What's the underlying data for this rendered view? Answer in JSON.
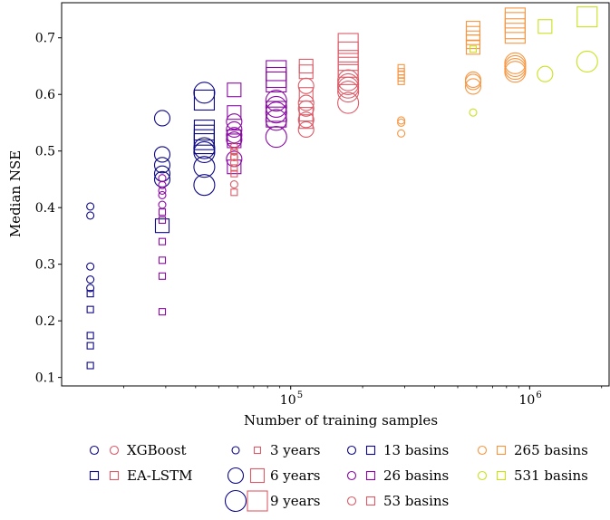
{
  "chart_data": {
    "type": "scatter",
    "x_scale": "log",
    "xlim": [
      11000,
      2150000
    ],
    "ylim": [
      0.085,
      0.762
    ],
    "xlabel": "Number of training samples",
    "ylabel": "Median NSE",
    "y_ticks": [
      {
        "value": 0.1,
        "label": "0.1"
      },
      {
        "value": 0.2,
        "label": "0.2"
      },
      {
        "value": 0.3,
        "label": "0.3"
      },
      {
        "value": 0.4,
        "label": "0.4"
      },
      {
        "value": 0.5,
        "label": "0.5"
      },
      {
        "value": 0.6,
        "label": "0.6"
      },
      {
        "value": 0.7,
        "label": "0.7"
      }
    ],
    "x_ticks": [
      {
        "value": 100000,
        "label": "10",
        "exp": "5"
      },
      {
        "value": 1000000,
        "label": "10",
        "exp": "6"
      }
    ],
    "basin_colors": {
      "13": "#0d0887",
      "26": "#8b0aa5",
      "53": "#db5c68",
      "265": "#f89540",
      "531": "#cbe11e"
    },
    "points": [
      {
        "x": 14500,
        "y": 0.402,
        "model": "XGBoost",
        "years": 3,
        "basins": "13"
      },
      {
        "x": 14500,
        "y": 0.386,
        "model": "XGBoost",
        "years": 3,
        "basins": "13"
      },
      {
        "x": 14500,
        "y": 0.296,
        "model": "XGBoost",
        "years": 3,
        "basins": "13"
      },
      {
        "x": 14500,
        "y": 0.273,
        "model": "XGBoost",
        "years": 3,
        "basins": "13"
      },
      {
        "x": 14500,
        "y": 0.258,
        "model": "XGBoost",
        "years": 3,
        "basins": "13"
      },
      {
        "x": 14500,
        "y": 0.248,
        "model": "EA-LSTM",
        "years": 3,
        "basins": "13"
      },
      {
        "x": 14500,
        "y": 0.22,
        "model": "EA-LSTM",
        "years": 3,
        "basins": "13"
      },
      {
        "x": 14500,
        "y": 0.174,
        "model": "EA-LSTM",
        "years": 3,
        "basins": "13"
      },
      {
        "x": 14500,
        "y": 0.156,
        "model": "EA-LSTM",
        "years": 3,
        "basins": "13"
      },
      {
        "x": 14500,
        "y": 0.121,
        "model": "EA-LSTM",
        "years": 3,
        "basins": "13"
      },
      {
        "x": 29000,
        "y": 0.558,
        "model": "XGBoost",
        "years": 6,
        "basins": "13"
      },
      {
        "x": 29000,
        "y": 0.494,
        "model": "XGBoost",
        "years": 6,
        "basins": "13"
      },
      {
        "x": 29000,
        "y": 0.475,
        "model": "XGBoost",
        "years": 6,
        "basins": "13"
      },
      {
        "x": 29000,
        "y": 0.46,
        "model": "XGBoost",
        "years": 6,
        "basins": "13"
      },
      {
        "x": 29000,
        "y": 0.45,
        "model": "XGBoost",
        "years": 6,
        "basins": "13"
      },
      {
        "x": 29000,
        "y": 0.368,
        "model": "EA-LSTM",
        "years": 6,
        "basins": "13"
      },
      {
        "x": 29000,
        "y": 0.452,
        "model": "XGBoost",
        "years": 3,
        "basins": "26"
      },
      {
        "x": 29000,
        "y": 0.44,
        "model": "XGBoost",
        "years": 3,
        "basins": "26"
      },
      {
        "x": 29000,
        "y": 0.43,
        "model": "XGBoost",
        "years": 3,
        "basins": "26"
      },
      {
        "x": 29000,
        "y": 0.422,
        "model": "XGBoost",
        "years": 3,
        "basins": "26"
      },
      {
        "x": 29000,
        "y": 0.405,
        "model": "XGBoost",
        "years": 3,
        "basins": "26"
      },
      {
        "x": 29000,
        "y": 0.392,
        "model": "EA-LSTM",
        "years": 3,
        "basins": "26"
      },
      {
        "x": 29000,
        "y": 0.378,
        "model": "EA-LSTM",
        "years": 3,
        "basins": "26"
      },
      {
        "x": 29000,
        "y": 0.34,
        "model": "EA-LSTM",
        "years": 3,
        "basins": "26"
      },
      {
        "x": 29000,
        "y": 0.307,
        "model": "EA-LSTM",
        "years": 3,
        "basins": "26"
      },
      {
        "x": 29000,
        "y": 0.279,
        "model": "EA-LSTM",
        "years": 3,
        "basins": "26"
      },
      {
        "x": 29000,
        "y": 0.216,
        "model": "EA-LSTM",
        "years": 3,
        "basins": "26"
      },
      {
        "x": 43500,
        "y": 0.603,
        "model": "XGBoost",
        "years": 9,
        "basins": "13"
      },
      {
        "x": 43500,
        "y": 0.505,
        "model": "XGBoost",
        "years": 9,
        "basins": "13"
      },
      {
        "x": 43500,
        "y": 0.498,
        "model": "XGBoost",
        "years": 9,
        "basins": "13"
      },
      {
        "x": 43500,
        "y": 0.472,
        "model": "XGBoost",
        "years": 9,
        "basins": "13"
      },
      {
        "x": 43500,
        "y": 0.44,
        "model": "XGBoost",
        "years": 9,
        "basins": "13"
      },
      {
        "x": 43500,
        "y": 0.59,
        "model": "EA-LSTM",
        "years": 9,
        "basins": "13"
      },
      {
        "x": 43500,
        "y": 0.537,
        "model": "EA-LSTM",
        "years": 9,
        "basins": "13"
      },
      {
        "x": 43500,
        "y": 0.528,
        "model": "EA-LSTM",
        "years": 9,
        "basins": "13"
      },
      {
        "x": 43500,
        "y": 0.52,
        "model": "EA-LSTM",
        "years": 9,
        "basins": "13"
      },
      {
        "x": 43500,
        "y": 0.513,
        "model": "EA-LSTM",
        "years": 9,
        "basins": "13"
      },
      {
        "x": 58000,
        "y": 0.608,
        "model": "EA-LSTM",
        "years": 6,
        "basins": "26"
      },
      {
        "x": 58000,
        "y": 0.568,
        "model": "EA-LSTM",
        "years": 6,
        "basins": "26"
      },
      {
        "x": 58000,
        "y": 0.525,
        "model": "EA-LSTM",
        "years": 6,
        "basins": "26"
      },
      {
        "x": 58000,
        "y": 0.518,
        "model": "EA-LSTM",
        "years": 6,
        "basins": "26"
      },
      {
        "x": 58000,
        "y": 0.472,
        "model": "EA-LSTM",
        "years": 6,
        "basins": "26"
      },
      {
        "x": 58000,
        "y": 0.552,
        "model": "XGBoost",
        "years": 6,
        "basins": "26"
      },
      {
        "x": 58000,
        "y": 0.538,
        "model": "XGBoost",
        "years": 6,
        "basins": "26"
      },
      {
        "x": 58000,
        "y": 0.528,
        "model": "XGBoost",
        "years": 6,
        "basins": "26"
      },
      {
        "x": 58000,
        "y": 0.52,
        "model": "XGBoost",
        "years": 6,
        "basins": "26"
      },
      {
        "x": 58000,
        "y": 0.486,
        "model": "XGBoost",
        "years": 6,
        "basins": "26"
      },
      {
        "x": 58000,
        "y": 0.508,
        "model": "XGBoost",
        "years": 3,
        "basins": "53"
      },
      {
        "x": 58000,
        "y": 0.499,
        "model": "XGBoost",
        "years": 3,
        "basins": "53"
      },
      {
        "x": 58000,
        "y": 0.489,
        "model": "XGBoost",
        "years": 3,
        "basins": "53"
      },
      {
        "x": 58000,
        "y": 0.479,
        "model": "XGBoost",
        "years": 3,
        "basins": "53"
      },
      {
        "x": 58000,
        "y": 0.441,
        "model": "XGBoost",
        "years": 3,
        "basins": "53"
      },
      {
        "x": 58000,
        "y": 0.5,
        "model": "EA-LSTM",
        "years": 3,
        "basins": "53"
      },
      {
        "x": 58000,
        "y": 0.49,
        "model": "EA-LSTM",
        "years": 3,
        "basins": "53"
      },
      {
        "x": 58000,
        "y": 0.47,
        "model": "EA-LSTM",
        "years": 3,
        "basins": "53"
      },
      {
        "x": 58000,
        "y": 0.46,
        "model": "EA-LSTM",
        "years": 3,
        "basins": "53"
      },
      {
        "x": 58000,
        "y": 0.427,
        "model": "EA-LSTM",
        "years": 3,
        "basins": "53"
      },
      {
        "x": 87000,
        "y": 0.642,
        "model": "EA-LSTM",
        "years": 9,
        "basins": "26"
      },
      {
        "x": 87000,
        "y": 0.63,
        "model": "EA-LSTM",
        "years": 9,
        "basins": "26"
      },
      {
        "x": 87000,
        "y": 0.622,
        "model": "EA-LSTM",
        "years": 9,
        "basins": "26"
      },
      {
        "x": 87000,
        "y": 0.57,
        "model": "EA-LSTM",
        "years": 9,
        "basins": "26"
      },
      {
        "x": 87000,
        "y": 0.56,
        "model": "EA-LSTM",
        "years": 9,
        "basins": "26"
      },
      {
        "x": 87000,
        "y": 0.589,
        "model": "XGBoost",
        "years": 9,
        "basins": "26"
      },
      {
        "x": 87000,
        "y": 0.578,
        "model": "XGBoost",
        "years": 9,
        "basins": "26"
      },
      {
        "x": 87000,
        "y": 0.568,
        "model": "XGBoost",
        "years": 9,
        "basins": "26"
      },
      {
        "x": 87000,
        "y": 0.555,
        "model": "XGBoost",
        "years": 9,
        "basins": "26"
      },
      {
        "x": 87000,
        "y": 0.525,
        "model": "XGBoost",
        "years": 9,
        "basins": "26"
      },
      {
        "x": 116000,
        "y": 0.65,
        "model": "EA-LSTM",
        "years": 6,
        "basins": "53"
      },
      {
        "x": 116000,
        "y": 0.64,
        "model": "EA-LSTM",
        "years": 6,
        "basins": "53"
      },
      {
        "x": 116000,
        "y": 0.6,
        "model": "EA-LSTM",
        "years": 6,
        "basins": "53"
      },
      {
        "x": 116000,
        "y": 0.565,
        "model": "EA-LSTM",
        "years": 6,
        "basins": "53"
      },
      {
        "x": 116000,
        "y": 0.552,
        "model": "EA-LSTM",
        "years": 6,
        "basins": "53"
      },
      {
        "x": 116000,
        "y": 0.615,
        "model": "XGBoost",
        "years": 6,
        "basins": "53"
      },
      {
        "x": 116000,
        "y": 0.585,
        "model": "XGBoost",
        "years": 6,
        "basins": "53"
      },
      {
        "x": 116000,
        "y": 0.575,
        "model": "XGBoost",
        "years": 6,
        "basins": "53"
      },
      {
        "x": 116000,
        "y": 0.555,
        "model": "XGBoost",
        "years": 6,
        "basins": "53"
      },
      {
        "x": 116000,
        "y": 0.538,
        "model": "XGBoost",
        "years": 6,
        "basins": "53"
      },
      {
        "x": 174000,
        "y": 0.69,
        "model": "EA-LSTM",
        "years": 9,
        "basins": "53"
      },
      {
        "x": 174000,
        "y": 0.675,
        "model": "EA-LSTM",
        "years": 9,
        "basins": "53"
      },
      {
        "x": 174000,
        "y": 0.66,
        "model": "EA-LSTM",
        "years": 9,
        "basins": "53"
      },
      {
        "x": 174000,
        "y": 0.648,
        "model": "EA-LSTM",
        "years": 9,
        "basins": "53"
      },
      {
        "x": 174000,
        "y": 0.635,
        "model": "EA-LSTM",
        "years": 9,
        "basins": "53"
      },
      {
        "x": 174000,
        "y": 0.625,
        "model": "XGBoost",
        "years": 9,
        "basins": "53"
      },
      {
        "x": 174000,
        "y": 0.618,
        "model": "XGBoost",
        "years": 9,
        "basins": "53"
      },
      {
        "x": 174000,
        "y": 0.612,
        "model": "XGBoost",
        "years": 9,
        "basins": "53"
      },
      {
        "x": 174000,
        "y": 0.605,
        "model": "XGBoost",
        "years": 9,
        "basins": "53"
      },
      {
        "x": 174000,
        "y": 0.585,
        "model": "XGBoost",
        "years": 9,
        "basins": "53"
      },
      {
        "x": 290000,
        "y": 0.647,
        "model": "EA-LSTM",
        "years": 3,
        "basins": "265"
      },
      {
        "x": 290000,
        "y": 0.64,
        "model": "EA-LSTM",
        "years": 3,
        "basins": "265"
      },
      {
        "x": 290000,
        "y": 0.635,
        "model": "EA-LSTM",
        "years": 3,
        "basins": "265"
      },
      {
        "x": 290000,
        "y": 0.629,
        "model": "EA-LSTM",
        "years": 3,
        "basins": "265"
      },
      {
        "x": 290000,
        "y": 0.623,
        "model": "EA-LSTM",
        "years": 3,
        "basins": "265"
      },
      {
        "x": 290000,
        "y": 0.554,
        "model": "XGBoost",
        "years": 3,
        "basins": "265"
      },
      {
        "x": 290000,
        "y": 0.55,
        "model": "XGBoost",
        "years": 3,
        "basins": "265"
      },
      {
        "x": 290000,
        "y": 0.531,
        "model": "XGBoost",
        "years": 3,
        "basins": "265"
      },
      {
        "x": 580000,
        "y": 0.717,
        "model": "EA-LSTM",
        "years": 6,
        "basins": "265"
      },
      {
        "x": 580000,
        "y": 0.708,
        "model": "EA-LSTM",
        "years": 6,
        "basins": "265"
      },
      {
        "x": 580000,
        "y": 0.7,
        "model": "EA-LSTM",
        "years": 6,
        "basins": "265"
      },
      {
        "x": 580000,
        "y": 0.693,
        "model": "EA-LSTM",
        "years": 6,
        "basins": "265"
      },
      {
        "x": 580000,
        "y": 0.683,
        "model": "EA-LSTM",
        "years": 6,
        "basins": "265"
      },
      {
        "x": 580000,
        "y": 0.626,
        "model": "XGBoost",
        "years": 6,
        "basins": "265"
      },
      {
        "x": 580000,
        "y": 0.622,
        "model": "XGBoost",
        "years": 6,
        "basins": "265"
      },
      {
        "x": 580000,
        "y": 0.614,
        "model": "XGBoost",
        "years": 6,
        "basins": "265"
      },
      {
        "x": 580000,
        "y": 0.68,
        "model": "EA-LSTM",
        "years": 3,
        "basins": "531"
      },
      {
        "x": 580000,
        "y": 0.568,
        "model": "XGBoost",
        "years": 3,
        "basins": "531"
      },
      {
        "x": 870000,
        "y": 0.735,
        "model": "EA-LSTM",
        "years": 9,
        "basins": "265"
      },
      {
        "x": 870000,
        "y": 0.727,
        "model": "EA-LSTM",
        "years": 9,
        "basins": "265"
      },
      {
        "x": 870000,
        "y": 0.716,
        "model": "EA-LSTM",
        "years": 9,
        "basins": "265"
      },
      {
        "x": 870000,
        "y": 0.708,
        "model": "EA-LSTM",
        "years": 9,
        "basins": "265"
      },
      {
        "x": 870000,
        "y": 0.655,
        "model": "XGBoost",
        "years": 9,
        "basins": "265"
      },
      {
        "x": 870000,
        "y": 0.65,
        "model": "XGBoost",
        "years": 9,
        "basins": "265"
      },
      {
        "x": 870000,
        "y": 0.645,
        "model": "XGBoost",
        "years": 9,
        "basins": "265"
      },
      {
        "x": 870000,
        "y": 0.64,
        "model": "XGBoost",
        "years": 9,
        "basins": "265"
      },
      {
        "x": 1160000,
        "y": 0.72,
        "model": "EA-LSTM",
        "years": 6,
        "basins": "531"
      },
      {
        "x": 1160000,
        "y": 0.636,
        "model": "XGBoost",
        "years": 6,
        "basins": "531"
      },
      {
        "x": 1740000,
        "y": 0.737,
        "model": "EA-LSTM",
        "years": 9,
        "basins": "531"
      },
      {
        "x": 1740000,
        "y": 0.658,
        "model": "XGBoost",
        "years": 9,
        "basins": "531"
      }
    ]
  },
  "legend": {
    "models": [
      {
        "label": "XGBoost",
        "marker": "circle",
        "colors": [
          "#0d0887",
          "#db5c68"
        ]
      },
      {
        "label": "EA-LSTM",
        "marker": "square",
        "colors": [
          "#0d0887",
          "#db5c68"
        ]
      }
    ],
    "years": [
      {
        "label": "3 years",
        "years": 3
      },
      {
        "label": "6 years",
        "years": 6
      },
      {
        "label": "9 years",
        "years": 9
      }
    ],
    "basins": [
      {
        "label": "13 basins",
        "key": "13"
      },
      {
        "label": "26 basins",
        "key": "26"
      },
      {
        "label": "53 basins",
        "key": "53"
      },
      {
        "label": "265 basins",
        "key": "265"
      },
      {
        "label": "531 basins",
        "key": "531"
      }
    ]
  }
}
